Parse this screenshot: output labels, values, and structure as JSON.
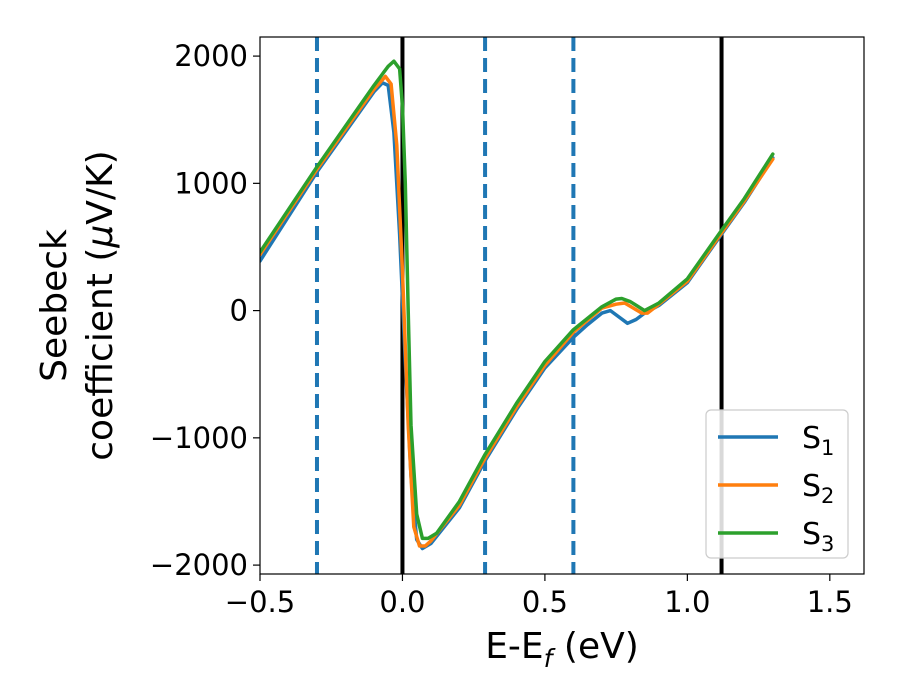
{
  "chart_data": {
    "type": "line",
    "xlabel": "E-E",
    "xlabel_sub": "f",
    "xlabel_unit": " (eV)",
    "ylabel_line1": "Seebeck",
    "ylabel_line2": "coefficient  (",
    "ylabel_mu": "μ",
    "ylabel_unit": "V/K)",
    "xlim": [
      -0.5,
      1.62
    ],
    "ylim": [
      -2070,
      2150
    ],
    "xticks": [
      -0.5,
      0.0,
      0.5,
      1.0,
      1.5
    ],
    "xtick_labels": [
      "−0.5",
      "0.0",
      "0.5",
      "1.0",
      "1.5"
    ],
    "yticks": [
      -2000,
      -1000,
      0,
      1000,
      2000
    ],
    "ytick_labels": [
      "−2000",
      "−1000",
      "0",
      "1000",
      "2000"
    ],
    "grid": false,
    "legend_position": "bottom-right",
    "vlines_solid": [
      0.0,
      1.12
    ],
    "vlines_dashed": [
      -0.3,
      0.29,
      0.6
    ],
    "colors": {
      "dashed": "#1f77b4",
      "solid": "#000000"
    },
    "series": [
      {
        "name": "S",
        "sub": "1",
        "color": "#1f77b4",
        "points": [
          [
            -0.5,
            390
          ],
          [
            -0.3,
            1090
          ],
          [
            -0.1,
            1720
          ],
          [
            -0.07,
            1790
          ],
          [
            -0.05,
            1770
          ],
          [
            -0.03,
            1400
          ],
          [
            -0.01,
            600
          ],
          [
            0.01,
            -400
          ],
          [
            0.03,
            -1300
          ],
          [
            0.05,
            -1800
          ],
          [
            0.07,
            -1870
          ],
          [
            0.1,
            -1830
          ],
          [
            0.2,
            -1550
          ],
          [
            0.29,
            -1180
          ],
          [
            0.4,
            -780
          ],
          [
            0.5,
            -450
          ],
          [
            0.6,
            -210
          ],
          [
            0.65,
            -110
          ],
          [
            0.7,
            -20
          ],
          [
            0.73,
            0
          ],
          [
            0.76,
            -50
          ],
          [
            0.79,
            -100
          ],
          [
            0.82,
            -70
          ],
          [
            0.85,
            -20
          ],
          [
            0.9,
            40
          ],
          [
            1.0,
            220
          ],
          [
            1.12,
            600
          ],
          [
            1.2,
            850
          ],
          [
            1.3,
            1200
          ]
        ]
      },
      {
        "name": "S",
        "sub": "2",
        "color": "#ff7f0e",
        "points": [
          [
            -0.5,
            440
          ],
          [
            -0.3,
            1110
          ],
          [
            -0.1,
            1740
          ],
          [
            -0.06,
            1840
          ],
          [
            -0.04,
            1780
          ],
          [
            -0.02,
            1300
          ],
          [
            0.0,
            300
          ],
          [
            0.02,
            -900
          ],
          [
            0.04,
            -1700
          ],
          [
            0.06,
            -1850
          ],
          [
            0.08,
            -1850
          ],
          [
            0.1,
            -1810
          ],
          [
            0.2,
            -1530
          ],
          [
            0.29,
            -1160
          ],
          [
            0.4,
            -760
          ],
          [
            0.5,
            -430
          ],
          [
            0.6,
            -170
          ],
          [
            0.7,
            20
          ],
          [
            0.75,
            50
          ],
          [
            0.78,
            60
          ],
          [
            0.81,
            20
          ],
          [
            0.84,
            -20
          ],
          [
            0.86,
            -20
          ],
          [
            0.9,
            50
          ],
          [
            1.0,
            230
          ],
          [
            1.12,
            610
          ],
          [
            1.2,
            860
          ],
          [
            1.3,
            1190
          ]
        ]
      },
      {
        "name": "S",
        "sub": "3",
        "color": "#2ca02c",
        "points": [
          [
            -0.5,
            460
          ],
          [
            -0.3,
            1130
          ],
          [
            -0.1,
            1770
          ],
          [
            -0.05,
            1920
          ],
          [
            -0.03,
            1960
          ],
          [
            -0.01,
            1900
          ],
          [
            0.0,
            1600
          ],
          [
            0.01,
            1000
          ],
          [
            0.02,
            0
          ],
          [
            0.03,
            -900
          ],
          [
            0.05,
            -1600
          ],
          [
            0.07,
            -1790
          ],
          [
            0.09,
            -1790
          ],
          [
            0.12,
            -1750
          ],
          [
            0.2,
            -1500
          ],
          [
            0.29,
            -1130
          ],
          [
            0.4,
            -730
          ],
          [
            0.5,
            -400
          ],
          [
            0.6,
            -150
          ],
          [
            0.7,
            30
          ],
          [
            0.75,
            90
          ],
          [
            0.77,
            95
          ],
          [
            0.8,
            70
          ],
          [
            0.85,
            0
          ],
          [
            0.9,
            60
          ],
          [
            1.0,
            250
          ],
          [
            1.12,
            630
          ],
          [
            1.2,
            880
          ],
          [
            1.3,
            1230
          ]
        ]
      }
    ]
  }
}
